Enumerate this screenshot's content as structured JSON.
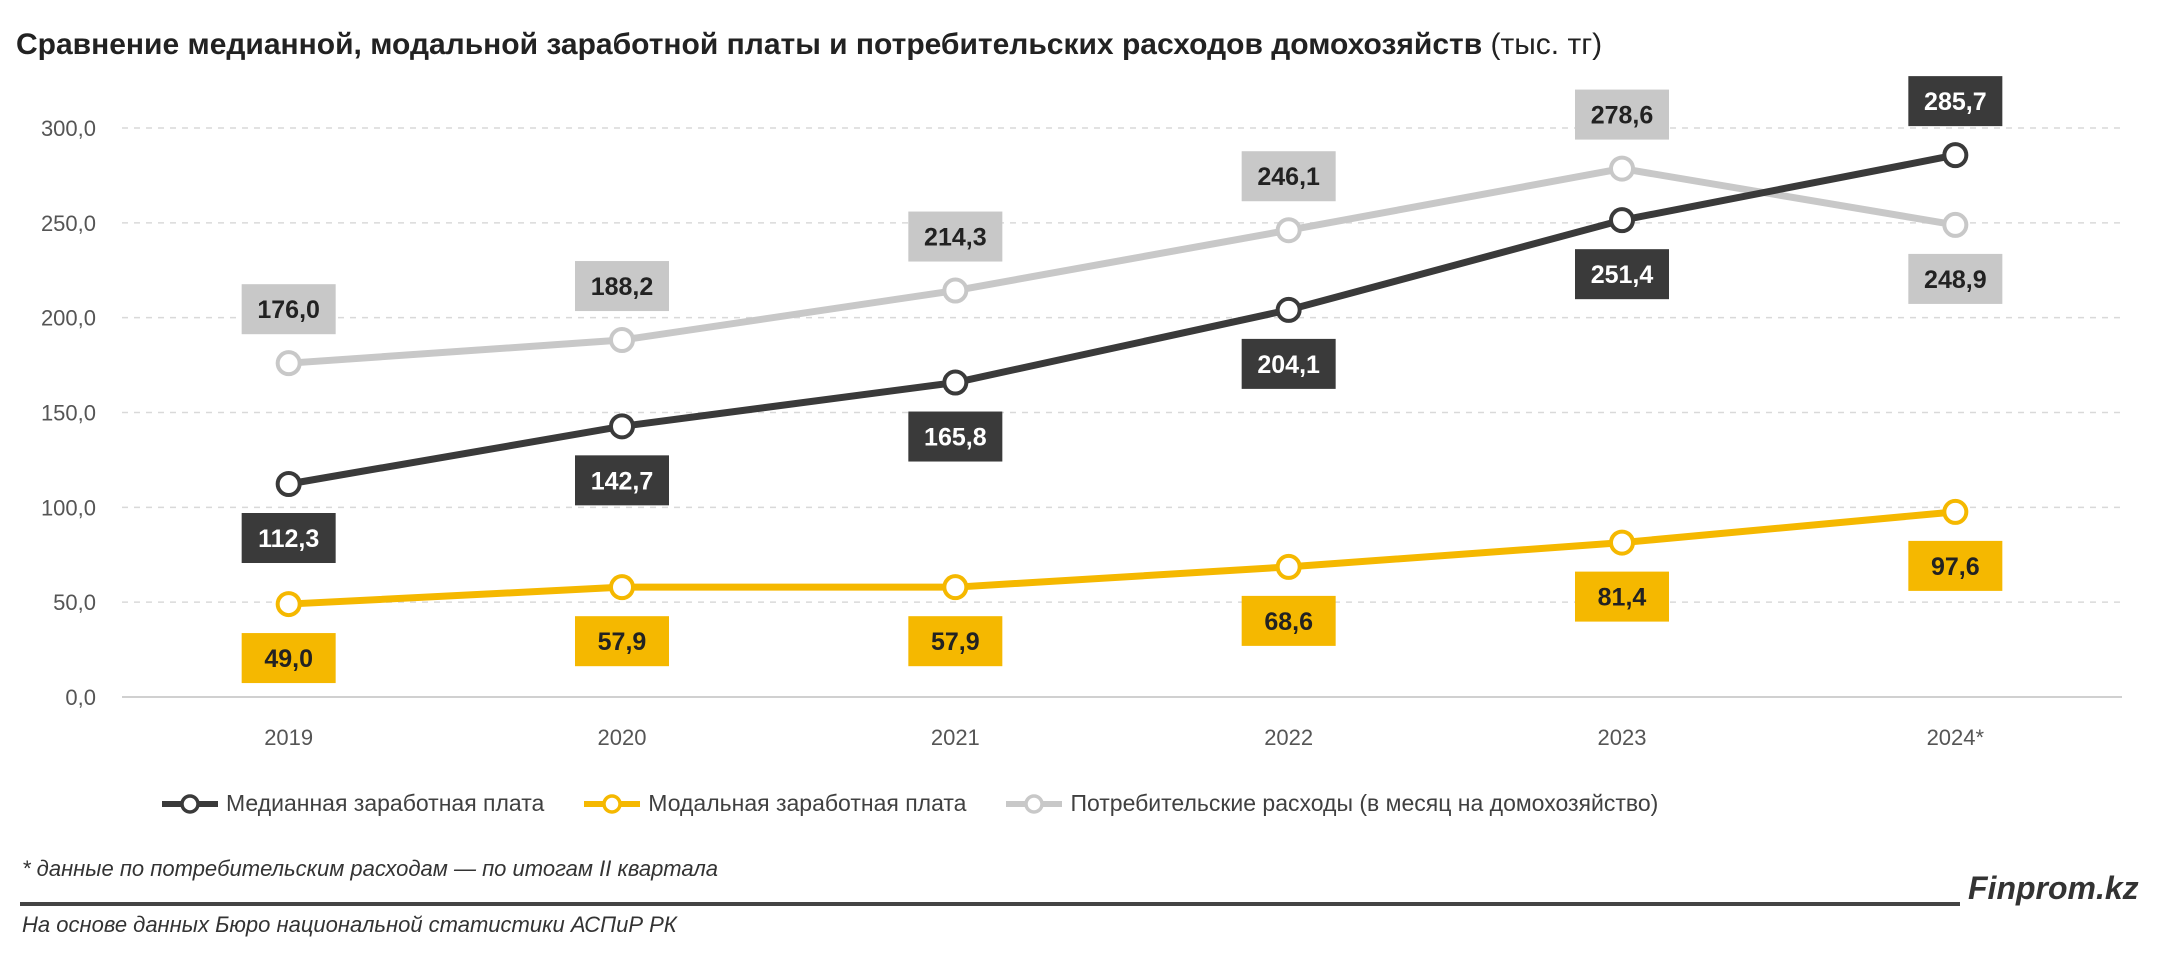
{
  "chart_data": {
    "type": "line",
    "title": "Сравнение медианной, модальной заработной платы и потребительских расходов домохозяйств",
    "title_unit": "(тыс. тг)",
    "categories": [
      "2019",
      "2020",
      "2021",
      "2022",
      "2023",
      "2024*"
    ],
    "ylim": [
      0,
      300
    ],
    "yticks": [
      "0,0",
      "50,0",
      "100,0",
      "150,0",
      "200,0",
      "250,0",
      "300,0"
    ],
    "grid": true,
    "legend_position": "bottom",
    "series": [
      {
        "name": "Медианная заработная плата",
        "color": "#3a3a3a",
        "values": [
          112.3,
          142.7,
          165.8,
          204.1,
          251.4,
          285.7
        ],
        "labels": [
          "112,3",
          "142,7",
          "165,8",
          "204,1",
          "251,4",
          "285,7"
        ]
      },
      {
        "name": "Модальная заработная плата",
        "color": "#f5b800",
        "values": [
          49.0,
          57.9,
          57.9,
          68.6,
          81.4,
          97.6
        ],
        "labels": [
          "49,0",
          "57,9",
          "57,9",
          "68,6",
          "81,4",
          "97,6"
        ]
      },
      {
        "name": "Потребительские расходы (в месяц на домохозяйство)",
        "color": "#c8c8c8",
        "values": [
          176.0,
          188.2,
          214.3,
          246.1,
          278.6,
          248.9
        ],
        "labels": [
          "176,0",
          "188,2",
          "214,3",
          "246,1",
          "278,6",
          "248,9"
        ]
      }
    ]
  },
  "footnote": "* данные по потребительским расходам — по итогам II квартала",
  "source": "На основе данных Бюро национальной статистики АСПиР РК",
  "brand": "Finprom.kz"
}
